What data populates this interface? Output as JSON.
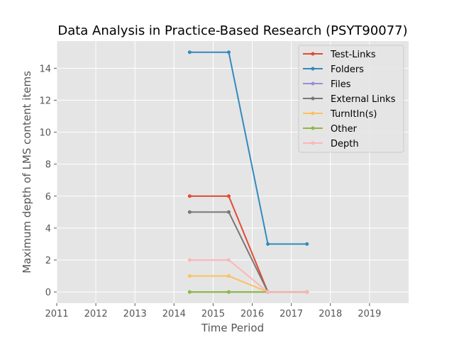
{
  "chart_data": {
    "type": "line",
    "title": "Data Analysis in Practice-Based Research (PSYT90077)",
    "xlabel": "Time Period",
    "ylabel": "Maximum depth of LMS content items",
    "xlim": [
      2011,
      2020
    ],
    "ylim": [
      -0.7,
      15.7
    ],
    "xticks": [
      2011,
      2012,
      2013,
      2014,
      2015,
      2016,
      2017,
      2018,
      2019
    ],
    "yticks": [
      0,
      2,
      4,
      6,
      8,
      10,
      12,
      14
    ],
    "grid": true,
    "legend_position": "top-right",
    "series": [
      {
        "name": "Test-Links",
        "color": "#e24a33",
        "x": [
          2014.4,
          2015.4,
          2016.4,
          2017.4
        ],
        "y": [
          6,
          6,
          0,
          0
        ]
      },
      {
        "name": "Folders",
        "color": "#348abd",
        "x": [
          2014.4,
          2015.4,
          2016.4,
          2017.4
        ],
        "y": [
          15,
          15,
          3,
          3
        ]
      },
      {
        "name": "Files",
        "color": "#988ed5",
        "x": [
          2014.4,
          2015.4,
          2016.4,
          2017.4
        ],
        "y": [
          0,
          0,
          0,
          0
        ]
      },
      {
        "name": "External Links",
        "color": "#777777",
        "x": [
          2014.4,
          2015.4,
          2016.4,
          2017.4
        ],
        "y": [
          5,
          5,
          0,
          0
        ]
      },
      {
        "name": "TurnItIn(s)",
        "color": "#fbc15e",
        "x": [
          2014.4,
          2015.4,
          2016.4,
          2017.4
        ],
        "y": [
          1,
          1,
          0,
          0
        ]
      },
      {
        "name": "Other",
        "color": "#8eba42",
        "x": [
          2014.4,
          2015.4,
          2016.4,
          2017.4
        ],
        "y": [
          0,
          0,
          0,
          0
        ]
      },
      {
        "name": "Depth",
        "color": "#ffb5b8",
        "x": [
          2014.4,
          2015.4,
          2016.4,
          2017.4
        ],
        "y": [
          2,
          2,
          0,
          0
        ]
      }
    ]
  }
}
